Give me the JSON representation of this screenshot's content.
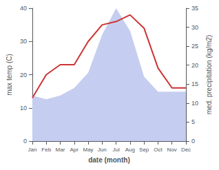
{
  "chart_data": {
    "type": "line",
    "xlabel": "date (month)",
    "ylabel": "max temp (C)",
    "y2label": "med. precipitation (kg/m2)",
    "categories": [
      "Jan",
      "Feb",
      "Mar",
      "Apr",
      "May",
      "Jun",
      "Jul",
      "Aug",
      "Sep",
      "Oct",
      "Nov",
      "Dec"
    ],
    "series": [
      {
        "type": "area",
        "axis": "y2",
        "color": "#c5cef0",
        "values": [
          12,
          11,
          12,
          14,
          18,
          28,
          35,
          29,
          17,
          13,
          13,
          13
        ]
      },
      {
        "type": "line",
        "color": "#cc3333",
        "values": [
          13,
          20,
          23,
          23,
          30,
          35,
          36,
          38,
          34,
          22,
          16,
          16
        ]
      }
    ],
    "ylim": [
      0,
      40
    ],
    "yticks": [
      0,
      10,
      20,
      30,
      40
    ],
    "y2lim": [
      0,
      35
    ],
    "y2ticks": [
      0,
      5,
      10,
      15,
      20,
      25,
      30,
      35
    ],
    "grid": false
  }
}
